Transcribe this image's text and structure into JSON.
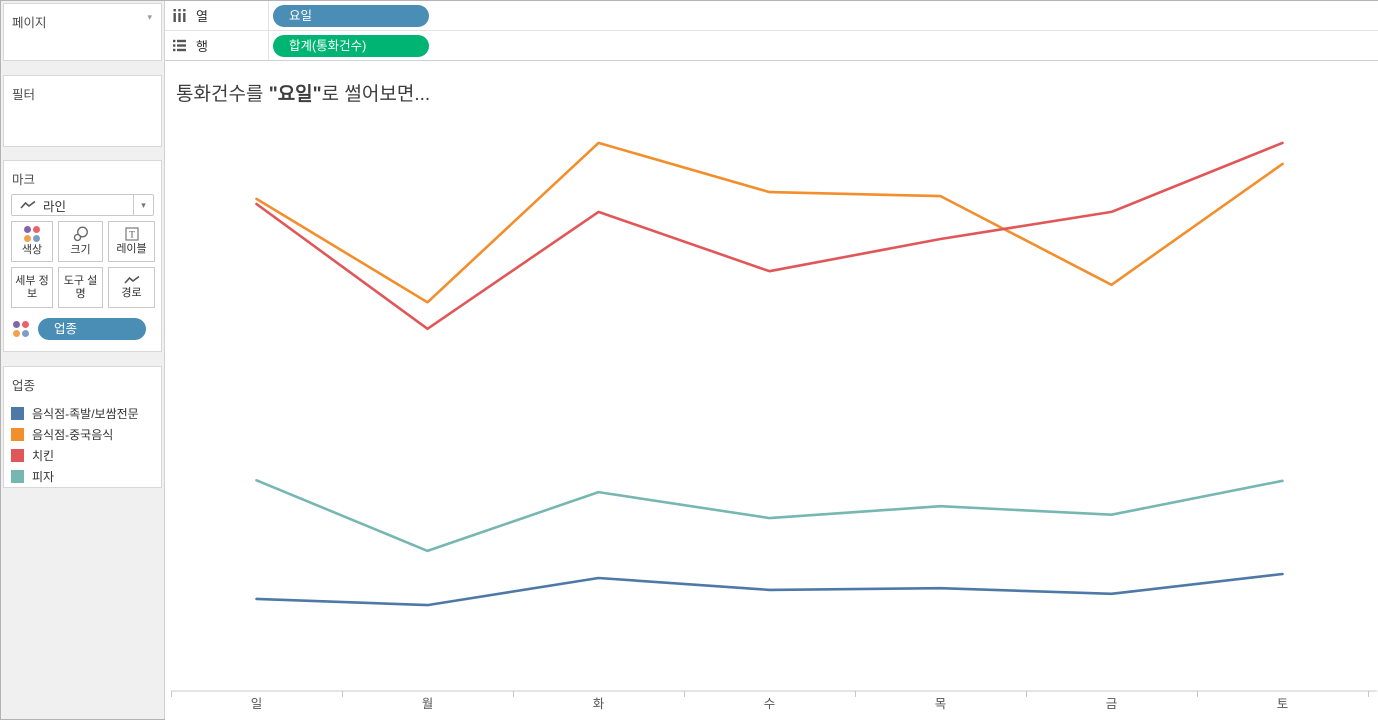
{
  "colors": {
    "dimension_pill": "#4A8DB5",
    "measure_pill": "#00B573",
    "marks_dots": [
      "#8464A8",
      "#E8636A",
      "#F5A14B",
      "#7D9DC9"
    ],
    "axis_line": "#C8C8C8",
    "axis_label": "#575757",
    "sidebar_bg": "#F0F0F0"
  },
  "sidebar": {
    "pages_card": {
      "title": "페이지"
    },
    "filters_card": {
      "title": "필터"
    },
    "marks_card": {
      "title": "마크",
      "mark_type_label": "라인",
      "buttons": [
        {
          "label": "색상"
        },
        {
          "label": "크기"
        },
        {
          "label": "레이블"
        },
        {
          "label": "세부 정보"
        },
        {
          "label": "도구 설명"
        },
        {
          "label": "경로"
        }
      ],
      "pill": {
        "label": "업종",
        "color": "#4A8DB5"
      }
    },
    "legend_card": {
      "title": "업종",
      "items": [
        {
          "label": "음식점-족발/보쌈전문",
          "color": "#4E79A7"
        },
        {
          "label": "음식점-중국음식",
          "color": "#F28E2B"
        },
        {
          "label": "치킨",
          "color": "#E15759"
        },
        {
          "label": "피자",
          "color": "#76B7B2"
        }
      ]
    }
  },
  "shelves": {
    "columns_label": "열",
    "rows_label": "행",
    "columns_pill": {
      "label": "요일",
      "color": "#4A8DB5"
    },
    "rows_pill": {
      "label": "합계(통화건수)",
      "color": "#00B573"
    }
  },
  "chart": {
    "title_segments": [
      {
        "text": "통화건수를 ",
        "bold": false
      },
      {
        "text": "\"요일\"",
        "bold": true
      },
      {
        "text": "로 썰어보면...",
        "bold": false
      }
    ]
  },
  "chart_data": {
    "type": "line",
    "title": "통화건수를 \"요일\"로 썰어보면...",
    "categories": [
      "일",
      "월",
      "화",
      "수",
      "목",
      "금",
      "토"
    ],
    "series": [
      {
        "name": "음식점-족발/보쌈전문",
        "color": "#4E79A7",
        "values": [
          16.3,
          15.2,
          20.0,
          17.9,
          18.2,
          17.2,
          20.7
        ]
      },
      {
        "name": "음식점-중국음식",
        "color": "#F28E2B",
        "values": [
          87.1,
          68.8,
          97.0,
          88.3,
          87.6,
          71.9,
          93.3
        ]
      },
      {
        "name": "치킨",
        "color": "#E15759",
        "values": [
          86.2,
          64.1,
          84.8,
          74.3,
          80.0,
          84.8,
          97.0
        ]
      },
      {
        "name": "피자",
        "color": "#76B7B2",
        "values": [
          37.3,
          24.8,
          35.2,
          30.6,
          32.7,
          31.2,
          37.2
        ]
      }
    ],
    "value_scale": "relative height, 0-100 of plot area (no numeric y-axis visible in screenshot)",
    "xlabel": "",
    "ylabel": "",
    "legend_title": "업종",
    "legend_position": "left",
    "grid": false,
    "y_axis_visible": false
  }
}
